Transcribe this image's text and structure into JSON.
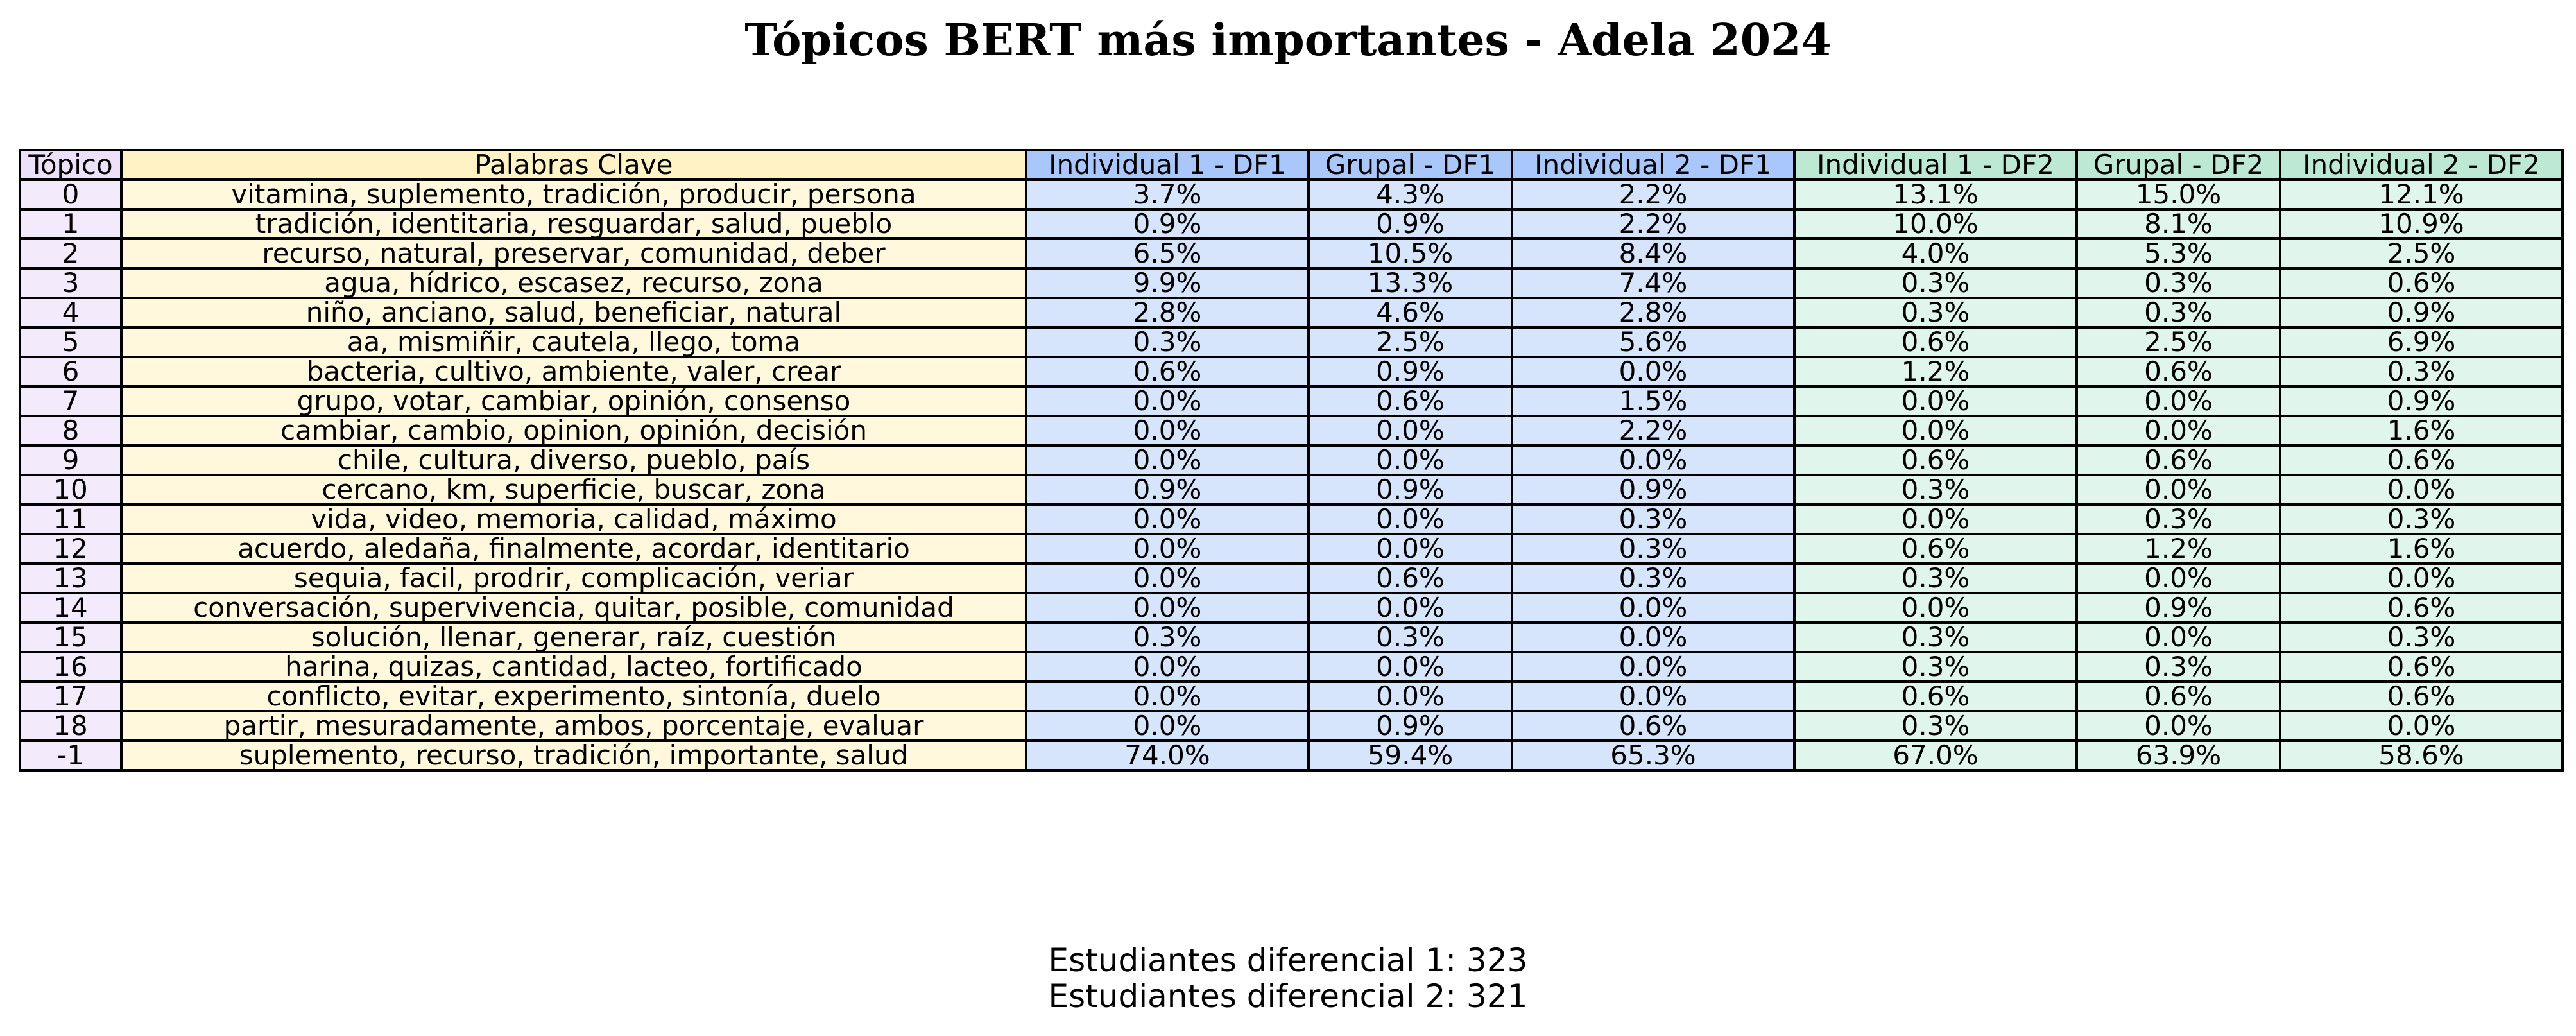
{
  "chart_data": {
    "type": "table",
    "title": "Tópicos BERT más importantes - Adela 2024",
    "columns": [
      "Tópico",
      "Palabras Clave",
      "Individual 1 - DF1",
      "Grupal - DF1",
      "Individual 2 - DF1",
      "Individual 1 - DF2",
      "Grupal - DF2",
      "Individual 2 - DF2"
    ],
    "rows": [
      [
        "0",
        "vitamina, suplemento, tradición, producir, persona",
        "3.7%",
        "4.3%",
        "2.2%",
        "13.1%",
        "15.0%",
        "12.1%"
      ],
      [
        "1",
        "tradición, identitaria, resguardar, salud, pueblo",
        "0.9%",
        "0.9%",
        "2.2%",
        "10.0%",
        "8.1%",
        "10.9%"
      ],
      [
        "2",
        "recurso, natural, preservar, comunidad, deber",
        "6.5%",
        "10.5%",
        "8.4%",
        "4.0%",
        "5.3%",
        "2.5%"
      ],
      [
        "3",
        "agua, hídrico, escasez, recurso, zona",
        "9.9%",
        "13.3%",
        "7.4%",
        "0.3%",
        "0.3%",
        "0.6%"
      ],
      [
        "4",
        "niño, anciano, salud, beneficiar, natural",
        "2.8%",
        "4.6%",
        "2.8%",
        "0.3%",
        "0.3%",
        "0.9%"
      ],
      [
        "5",
        "aa, mismiñir, cautela, llego, toma",
        "0.3%",
        "2.5%",
        "5.6%",
        "0.6%",
        "2.5%",
        "6.9%"
      ],
      [
        "6",
        "bacteria, cultivo, ambiente, valer, crear",
        "0.6%",
        "0.9%",
        "0.0%",
        "1.2%",
        "0.6%",
        "0.3%"
      ],
      [
        "7",
        "grupo, votar, cambiar, opinión, consenso",
        "0.0%",
        "0.6%",
        "1.5%",
        "0.0%",
        "0.0%",
        "0.9%"
      ],
      [
        "8",
        "cambiar, cambio, opinion, opinión, decisión",
        "0.0%",
        "0.0%",
        "2.2%",
        "0.0%",
        "0.0%",
        "1.6%"
      ],
      [
        "9",
        "chile, cultura, diverso, pueblo, país",
        "0.0%",
        "0.0%",
        "0.0%",
        "0.6%",
        "0.6%",
        "0.6%"
      ],
      [
        "10",
        "cercano, km, superficie, buscar, zona",
        "0.9%",
        "0.9%",
        "0.9%",
        "0.3%",
        "0.0%",
        "0.0%"
      ],
      [
        "11",
        "vida, video, memoria, calidad, máximo",
        "0.0%",
        "0.0%",
        "0.3%",
        "0.0%",
        "0.3%",
        "0.3%"
      ],
      [
        "12",
        "acuerdo, aledaña, finalmente, acordar, identitario",
        "0.0%",
        "0.0%",
        "0.3%",
        "0.6%",
        "1.2%",
        "1.6%"
      ],
      [
        "13",
        "sequia, facil, prodrir, complicación, veriar",
        "0.0%",
        "0.6%",
        "0.3%",
        "0.3%",
        "0.0%",
        "0.0%"
      ],
      [
        "14",
        "conversación, supervivencia, quitar, posible, comunidad",
        "0.0%",
        "0.0%",
        "0.0%",
        "0.0%",
        "0.9%",
        "0.6%"
      ],
      [
        "15",
        "solución, llenar, generar, raíz, cuestión",
        "0.3%",
        "0.3%",
        "0.0%",
        "0.3%",
        "0.0%",
        "0.3%"
      ],
      [
        "16",
        "harina, quizas, cantidad, lacteo, fortificado",
        "0.0%",
        "0.0%",
        "0.0%",
        "0.3%",
        "0.3%",
        "0.6%"
      ],
      [
        "17",
        "conflicto, evitar, experimento, sintonía, duelo",
        "0.0%",
        "0.0%",
        "0.0%",
        "0.6%",
        "0.6%",
        "0.6%"
      ],
      [
        "18",
        "partir, mesuradamente, ambos, porcentaje, evaluar",
        "0.0%",
        "0.9%",
        "0.6%",
        "0.3%",
        "0.0%",
        "0.0%"
      ],
      [
        "-1",
        "suplemento, recurso, tradición, importante, salud",
        "74.0%",
        "59.4%",
        "65.3%",
        "67.0%",
        "63.9%",
        "58.6%"
      ]
    ],
    "column_colors": {
      "topic": "#f3eafc",
      "keywords": "#fff8dd",
      "df1": "#d6e4fc",
      "df2": "#e0f6ec",
      "header_topic": "#ede0fa",
      "header_keywords": "#fff2c4",
      "header_df1": "#aac7fb",
      "header_df2": "#bde8d3"
    },
    "footer": [
      "Estudiantes diferencial 1: 323",
      "Estudiantes diferencial 2: 321"
    ]
  }
}
